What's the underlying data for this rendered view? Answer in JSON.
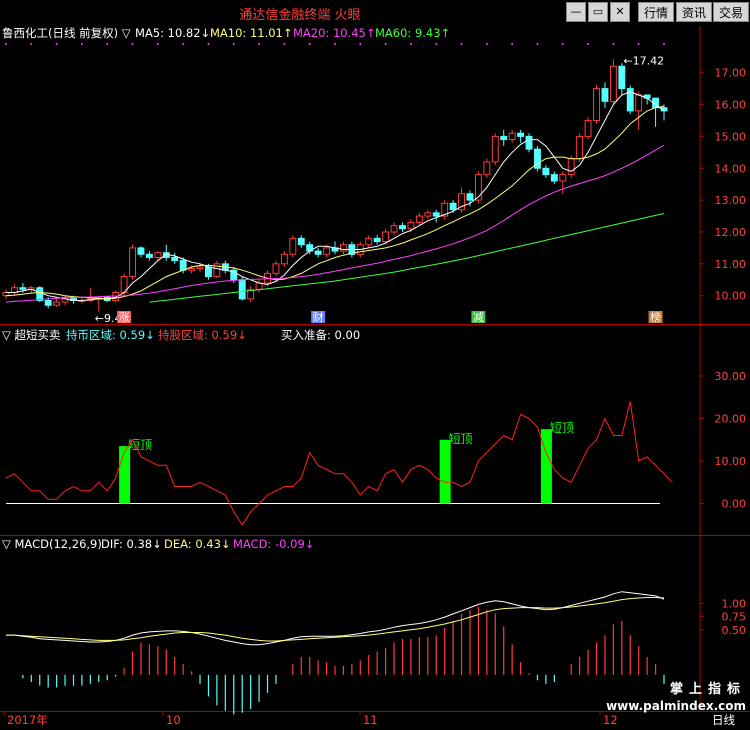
{
  "window": {
    "title": "通达信金融终端 火眼",
    "buttons": [
      "行情",
      "资讯",
      "交易"
    ]
  },
  "colors": {
    "up": "#ff3b3b",
    "down": "#54ffff",
    "ma5": "#ffffff",
    "ma10": "#ffff7a",
    "ma20": "#ff40ff",
    "ma60": "#40ff40",
    "grid": "#b00000",
    "axis_text": "#ff4040",
    "signal": "#00ff00",
    "line": "#ff2020"
  },
  "price_panel": {
    "stock": "鲁西化工(日线 前复权)",
    "ma5_label": "MA5: 10.82",
    "ma10_label": "MA10: 11.01",
    "ma20_label": "MA20: 10.45",
    "ma60_label": "MA60: 9.43",
    "high_label": "17.42",
    "low_label": "9.49",
    "event_labels": [
      "涨",
      "财",
      "减",
      "榜"
    ]
  },
  "osc_panel": {
    "name": "超短买卖",
    "label1": "持币区域: 0.59",
    "label2": "持股区域: 0.59",
    "label3": "买入准备: 0.00",
    "signal_label": "短顶"
  },
  "macd_panel": {
    "name": "MACD(12,26,9)",
    "dif_label": "DIF: 0.38",
    "dea_label": "DEA: 0.43",
    "macd_label": "MACD: -0.09"
  },
  "time_axis": {
    "labels": [
      "2017年",
      "10",
      "11",
      "12"
    ],
    "period": "日线"
  },
  "watermark": {
    "line1": "掌上指标",
    "line2": "www.palmindex.com"
  },
  "chart_data": [
    {
      "type": "candlestick",
      "ylim": [
        9.3,
        17.9
      ],
      "yticks": [
        10.0,
        11.0,
        12.0,
        13.0,
        14.0,
        15.0,
        16.0,
        17.0
      ],
      "candles": [
        [
          10.0,
          10.1,
          9.9,
          10.2
        ],
        [
          10.1,
          10.25,
          10.0,
          10.35
        ],
        [
          10.25,
          10.2,
          10.1,
          10.4
        ],
        [
          10.2,
          10.25,
          10.1,
          10.3
        ],
        [
          10.25,
          9.85,
          9.8,
          10.3
        ],
        [
          9.85,
          9.7,
          9.6,
          9.95
        ],
        [
          9.7,
          9.8,
          9.65,
          9.9
        ],
        [
          9.8,
          9.95,
          9.7,
          10.0
        ],
        [
          9.95,
          9.85,
          9.75,
          10.0
        ],
        [
          9.85,
          9.85,
          9.75,
          9.95
        ],
        [
          9.85,
          9.9,
          9.8,
          10.25
        ],
        [
          9.9,
          9.95,
          9.5,
          10.0
        ],
        [
          9.95,
          9.85,
          9.8,
          10.0
        ],
        [
          9.85,
          10.1,
          9.8,
          10.15
        ],
        [
          10.1,
          10.6,
          10.0,
          10.7
        ],
        [
          10.6,
          11.5,
          10.5,
          11.6
        ],
        [
          11.5,
          11.3,
          11.2,
          11.55
        ],
        [
          11.3,
          11.2,
          11.1,
          11.4
        ],
        [
          11.2,
          11.35,
          11.1,
          11.4
        ],
        [
          11.35,
          11.2,
          11.1,
          11.6
        ],
        [
          11.2,
          11.1,
          11.0,
          11.35
        ],
        [
          11.1,
          10.8,
          10.7,
          11.2
        ],
        [
          10.8,
          10.85,
          10.7,
          10.95
        ],
        [
          10.85,
          10.9,
          10.75,
          11.0
        ],
        [
          10.9,
          10.6,
          10.5,
          11.0
        ],
        [
          10.6,
          11.0,
          10.55,
          11.1
        ],
        [
          11.0,
          10.8,
          10.7,
          11.1
        ],
        [
          10.8,
          10.5,
          10.4,
          10.9
        ],
        [
          10.5,
          9.9,
          9.85,
          10.6
        ],
        [
          9.9,
          10.2,
          9.8,
          10.3
        ],
        [
          10.2,
          10.4,
          10.1,
          10.5
        ],
        [
          10.4,
          10.7,
          10.3,
          10.8
        ],
        [
          10.7,
          11.0,
          10.6,
          11.1
        ],
        [
          11.0,
          11.3,
          10.9,
          11.4
        ],
        [
          11.3,
          11.8,
          11.2,
          11.9
        ],
        [
          11.8,
          11.6,
          11.5,
          11.9
        ],
        [
          11.6,
          11.4,
          11.3,
          11.7
        ],
        [
          11.4,
          11.3,
          11.2,
          11.5
        ],
        [
          11.3,
          11.5,
          11.2,
          11.6
        ],
        [
          11.5,
          11.4,
          11.3,
          11.7
        ],
        [
          11.4,
          11.6,
          11.3,
          11.7
        ],
        [
          11.6,
          11.3,
          11.2,
          11.7
        ],
        [
          11.3,
          11.6,
          11.2,
          11.7
        ],
        [
          11.6,
          11.8,
          11.5,
          11.9
        ],
        [
          11.8,
          11.7,
          11.6,
          11.9
        ],
        [
          11.7,
          12.0,
          11.6,
          12.1
        ],
        [
          12.0,
          12.2,
          11.9,
          12.3
        ],
        [
          12.2,
          12.1,
          12.0,
          12.3
        ],
        [
          12.1,
          12.3,
          12.0,
          12.4
        ],
        [
          12.3,
          12.5,
          12.2,
          12.6
        ],
        [
          12.5,
          12.6,
          12.4,
          12.7
        ],
        [
          12.6,
          12.5,
          12.3,
          12.7
        ],
        [
          12.5,
          12.9,
          12.4,
          13.0
        ],
        [
          12.9,
          12.7,
          12.6,
          13.0
        ],
        [
          12.7,
          13.2,
          12.6,
          13.4
        ],
        [
          13.2,
          13.0,
          12.8,
          13.3
        ],
        [
          13.0,
          13.8,
          12.9,
          13.9
        ],
        [
          13.8,
          14.2,
          13.7,
          14.3
        ],
        [
          14.2,
          15.0,
          14.1,
          15.1
        ],
        [
          15.0,
          14.9,
          14.7,
          15.2
        ],
        [
          14.9,
          15.1,
          14.8,
          15.2
        ],
        [
          15.1,
          15.0,
          14.8,
          15.2
        ],
        [
          15.0,
          14.6,
          14.5,
          15.1
        ],
        [
          14.6,
          14.0,
          13.9,
          14.7
        ],
        [
          14.0,
          13.8,
          13.7,
          14.1
        ],
        [
          13.8,
          13.6,
          13.5,
          13.9
        ],
        [
          13.6,
          13.8,
          13.2,
          13.9
        ],
        [
          13.8,
          14.3,
          13.7,
          14.4
        ],
        [
          14.3,
          15.0,
          14.2,
          15.1
        ],
        [
          15.0,
          15.5,
          14.9,
          15.6
        ],
        [
          15.5,
          16.5,
          15.4,
          16.6
        ],
        [
          16.5,
          16.1,
          15.9,
          16.7
        ],
        [
          16.1,
          17.2,
          16.0,
          17.42
        ],
        [
          17.2,
          16.5,
          16.3,
          17.3
        ],
        [
          16.5,
          15.8,
          15.7,
          16.6
        ],
        [
          15.8,
          16.3,
          15.2,
          16.4
        ],
        [
          16.3,
          16.2,
          16.0,
          16.3
        ],
        [
          16.2,
          15.9,
          15.3,
          16.2
        ],
        [
          15.9,
          15.8,
          15.5,
          16.0
        ]
      ],
      "ma5": [
        10.1,
        10.1,
        10.15,
        10.2,
        10.1,
        10.0,
        9.95,
        9.9,
        9.85,
        9.85,
        9.87,
        9.9,
        9.9,
        9.95,
        10.1,
        10.4,
        10.6,
        10.85,
        11.1,
        11.3,
        11.25,
        11.15,
        11.05,
        11.0,
        10.9,
        10.85,
        10.8,
        10.75,
        10.6,
        10.5,
        10.4,
        10.35,
        10.45,
        10.65,
        10.95,
        11.2,
        11.4,
        11.55,
        11.55,
        11.5,
        11.45,
        11.45,
        11.45,
        11.5,
        11.55,
        11.65,
        11.8,
        11.95,
        12.05,
        12.2,
        12.35,
        12.45,
        12.55,
        12.65,
        12.8,
        12.9,
        13.1,
        13.4,
        13.8,
        14.2,
        14.5,
        14.75,
        14.9,
        14.9,
        14.7,
        14.35,
        14.0,
        13.9,
        14.1,
        14.5,
        15.0,
        15.5,
        16.0,
        16.3,
        16.4,
        16.3,
        16.2,
        16.0,
        15.8
      ],
      "ma10": [
        10.0,
        10.02,
        10.05,
        10.08,
        10.1,
        10.08,
        10.05,
        10.0,
        9.97,
        9.95,
        9.93,
        9.92,
        9.9,
        9.92,
        9.97,
        10.05,
        10.15,
        10.3,
        10.45,
        10.6,
        10.7,
        10.8,
        10.9,
        10.95,
        10.95,
        10.93,
        10.9,
        10.87,
        10.8,
        10.72,
        10.62,
        10.55,
        10.5,
        10.52,
        10.6,
        10.7,
        10.85,
        11.0,
        11.1,
        11.2,
        11.27,
        11.33,
        11.38,
        11.42,
        11.46,
        11.5,
        11.57,
        11.65,
        11.75,
        11.85,
        11.95,
        12.07,
        12.2,
        12.32,
        12.45,
        12.57,
        12.7,
        12.87,
        13.05,
        13.25,
        13.45,
        13.7,
        13.95,
        14.15,
        14.3,
        14.35,
        14.35,
        14.3,
        14.3,
        14.35,
        14.45,
        14.6,
        14.85,
        15.1,
        15.4,
        15.6,
        15.8,
        15.9,
        15.95
      ],
      "ma20": [
        9.8,
        9.82,
        9.84,
        9.86,
        9.88,
        9.9,
        9.92,
        9.93,
        9.94,
        9.95,
        9.96,
        9.97,
        9.98,
        9.99,
        10.0,
        10.02,
        10.05,
        10.08,
        10.12,
        10.17,
        10.22,
        10.27,
        10.32,
        10.36,
        10.4,
        10.43,
        10.46,
        10.48,
        10.5,
        10.51,
        10.52,
        10.53,
        10.54,
        10.55,
        10.57,
        10.6,
        10.63,
        10.67,
        10.72,
        10.77,
        10.82,
        10.87,
        10.92,
        10.97,
        11.02,
        11.08,
        11.14,
        11.2,
        11.26,
        11.33,
        11.4,
        11.47,
        11.55,
        11.63,
        11.72,
        11.82,
        11.93,
        12.05,
        12.2,
        12.36,
        12.53,
        12.7,
        12.86,
        13.0,
        13.13,
        13.25,
        13.35,
        13.44,
        13.52,
        13.6,
        13.68,
        13.77,
        13.88,
        14.0,
        14.13,
        14.27,
        14.42,
        14.57,
        14.72
      ],
      "ma60_start": 17,
      "ma60": [
        9.8,
        9.83,
        9.86,
        9.89,
        9.92,
        9.95,
        9.98,
        10.01,
        10.04,
        10.07,
        10.1,
        10.13,
        10.16,
        10.19,
        10.22,
        10.25,
        10.28,
        10.31,
        10.34,
        10.37,
        10.4,
        10.43,
        10.46,
        10.5,
        10.54,
        10.58,
        10.62,
        10.66,
        10.7,
        10.74,
        10.79,
        10.84,
        10.89,
        10.94,
        10.99,
        11.04,
        11.09,
        11.14,
        11.2,
        11.26,
        11.32,
        11.38,
        11.44,
        11.5,
        11.56,
        11.62,
        11.68,
        11.74,
        11.8,
        11.86,
        11.92,
        11.98,
        12.04,
        12.1,
        12.16,
        12.22,
        12.28,
        12.34,
        12.4,
        12.46,
        12.52,
        12.58
      ]
    },
    {
      "type": "line",
      "ylim": [
        -6,
        38
      ],
      "yticks": [
        0.0,
        10.0,
        20.0,
        30.0
      ],
      "values": [
        6,
        7,
        5,
        3,
        3,
        1,
        1,
        3,
        4,
        3,
        3,
        5,
        3,
        6,
        12,
        15,
        11,
        10,
        9,
        9,
        4,
        4,
        4,
        5,
        4,
        3,
        2,
        -2,
        -5,
        -2,
        0,
        2,
        3,
        4,
        4,
        6,
        12,
        9,
        8,
        7,
        7,
        5,
        2,
        4,
        3,
        7,
        8,
        5,
        8,
        9,
        8,
        6,
        5,
        5,
        4,
        5,
        10,
        12,
        14,
        16,
        15,
        21,
        20,
        18,
        12,
        8,
        6,
        5,
        9,
        13,
        15,
        20,
        16,
        16,
        24,
        10,
        11,
        9,
        7,
        5
      ],
      "signal_bars": [
        [
          14,
          0,
          13.5
        ],
        [
          52,
          0,
          15
        ],
        [
          64,
          0,
          17.5
        ]
      ]
    },
    {
      "type": "macd",
      "ylim": [
        -0.9,
        1.95
      ],
      "yticks": [
        0.5,
        0.75,
        1.0
      ],
      "dif": [
        0.4,
        0.4,
        0.38,
        0.36,
        0.33,
        0.32,
        0.31,
        0.3,
        0.29,
        0.28,
        0.27,
        0.27,
        0.28,
        0.3,
        0.34,
        0.4,
        0.44,
        0.46,
        0.47,
        0.48,
        0.48,
        0.47,
        0.45,
        0.42,
        0.38,
        0.34,
        0.3,
        0.27,
        0.24,
        0.22,
        0.22,
        0.24,
        0.27,
        0.3,
        0.34,
        0.37,
        0.38,
        0.38,
        0.38,
        0.38,
        0.39,
        0.41,
        0.43,
        0.46,
        0.48,
        0.51,
        0.55,
        0.58,
        0.6,
        0.62,
        0.65,
        0.69,
        0.74,
        0.8,
        0.86,
        0.92,
        0.98,
        1.02,
        1.05,
        1.03,
        0.99,
        0.95,
        0.92,
        0.9,
        0.88,
        0.89,
        0.92,
        0.96,
        1.0,
        1.04,
        1.08,
        1.12,
        1.18,
        1.22,
        1.2,
        1.18,
        1.16,
        1.14,
        1.08
      ],
      "dea": [
        0.4,
        0.4,
        0.39,
        0.38,
        0.37,
        0.36,
        0.35,
        0.34,
        0.33,
        0.32,
        0.31,
        0.3,
        0.3,
        0.3,
        0.31,
        0.33,
        0.35,
        0.38,
        0.4,
        0.42,
        0.44,
        0.45,
        0.45,
        0.45,
        0.44,
        0.42,
        0.4,
        0.37,
        0.34,
        0.32,
        0.3,
        0.29,
        0.29,
        0.3,
        0.31,
        0.32,
        0.33,
        0.34,
        0.35,
        0.36,
        0.37,
        0.38,
        0.39,
        0.4,
        0.42,
        0.44,
        0.46,
        0.48,
        0.5,
        0.52,
        0.55,
        0.58,
        0.61,
        0.65,
        0.69,
        0.74,
        0.79,
        0.84,
        0.88,
        0.9,
        0.91,
        0.92,
        0.92,
        0.92,
        0.91,
        0.91,
        0.92,
        0.93,
        0.95,
        0.97,
        0.99,
        1.01,
        1.04,
        1.07,
        1.09,
        1.1,
        1.11,
        1.11,
        1.1
      ],
      "macd": [
        0,
        0,
        -0.02,
        -0.04,
        -0.06,
        -0.07,
        -0.07,
        -0.06,
        -0.06,
        -0.06,
        -0.05,
        -0.04,
        -0.03,
        -0.01,
        0.04,
        0.13,
        0.18,
        0.17,
        0.16,
        0.14,
        0.1,
        0.06,
        0.02,
        -0.05,
        -0.12,
        -0.17,
        -0.2,
        -0.22,
        -0.21,
        -0.19,
        -0.15,
        -0.1,
        -0.05,
        0.0,
        0.06,
        0.1,
        0.1,
        0.08,
        0.07,
        0.05,
        0.05,
        0.06,
        0.08,
        0.11,
        0.13,
        0.15,
        0.18,
        0.2,
        0.2,
        0.21,
        0.21,
        0.22,
        0.26,
        0.3,
        0.34,
        0.36,
        0.38,
        0.36,
        0.34,
        0.27,
        0.17,
        0.07,
        0.01,
        -0.03,
        -0.05,
        -0.04,
        0.0,
        0.06,
        0.1,
        0.14,
        0.18,
        0.22,
        0.28,
        0.3,
        0.22,
        0.16,
        0.1,
        0.06,
        -0.05
      ]
    }
  ]
}
